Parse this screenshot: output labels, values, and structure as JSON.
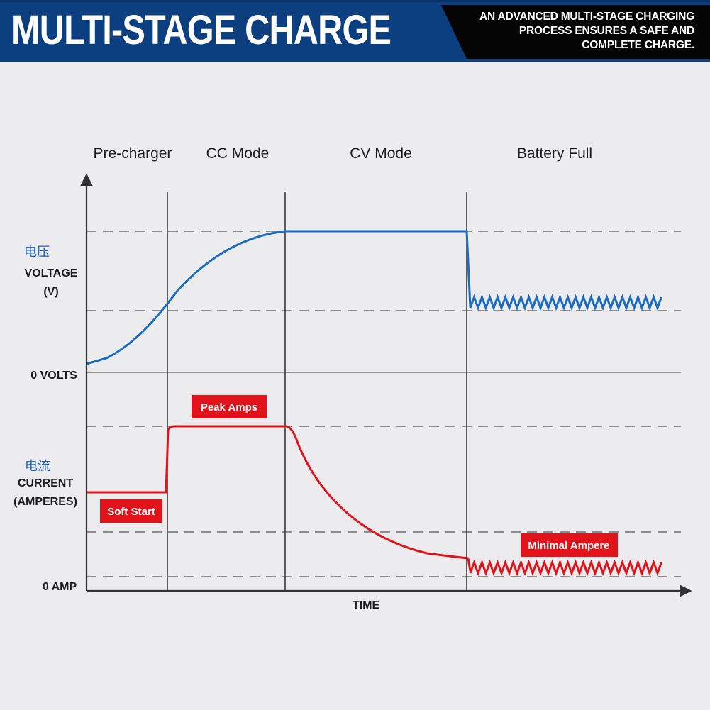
{
  "header": {
    "title": "MULTI-STAGE CHARGE",
    "tagline_lines": [
      "AN ADVANCED MULTI-STAGE CHARGING",
      "PROCESS ENSURES A SAFE AND",
      "COMPLETE CHARGE."
    ]
  },
  "stages": [
    "Pre-charger",
    "CC Mode",
    "CV Mode",
    "Battery Full"
  ],
  "voltage_axis": {
    "label_cn": "电压",
    "label_line1": "VOLTAGE",
    "label_line2": "(V)",
    "zero_label": "0 VOLTS"
  },
  "current_axis": {
    "label_cn": "电流",
    "label_line1": "CURRENT",
    "label_line2": "(AMPERES)",
    "zero_label": "0 AMP"
  },
  "time_label": "TIME",
  "callouts": {
    "peak": "Peak Amps",
    "soft_start": "Soft Start",
    "minimal": "Minimal Ampere"
  },
  "colors": {
    "banner": "#0c3f80",
    "voltage_line": "#1a6bc2",
    "current_line": "#e0131a",
    "callout_bg": "#e0131a"
  }
}
